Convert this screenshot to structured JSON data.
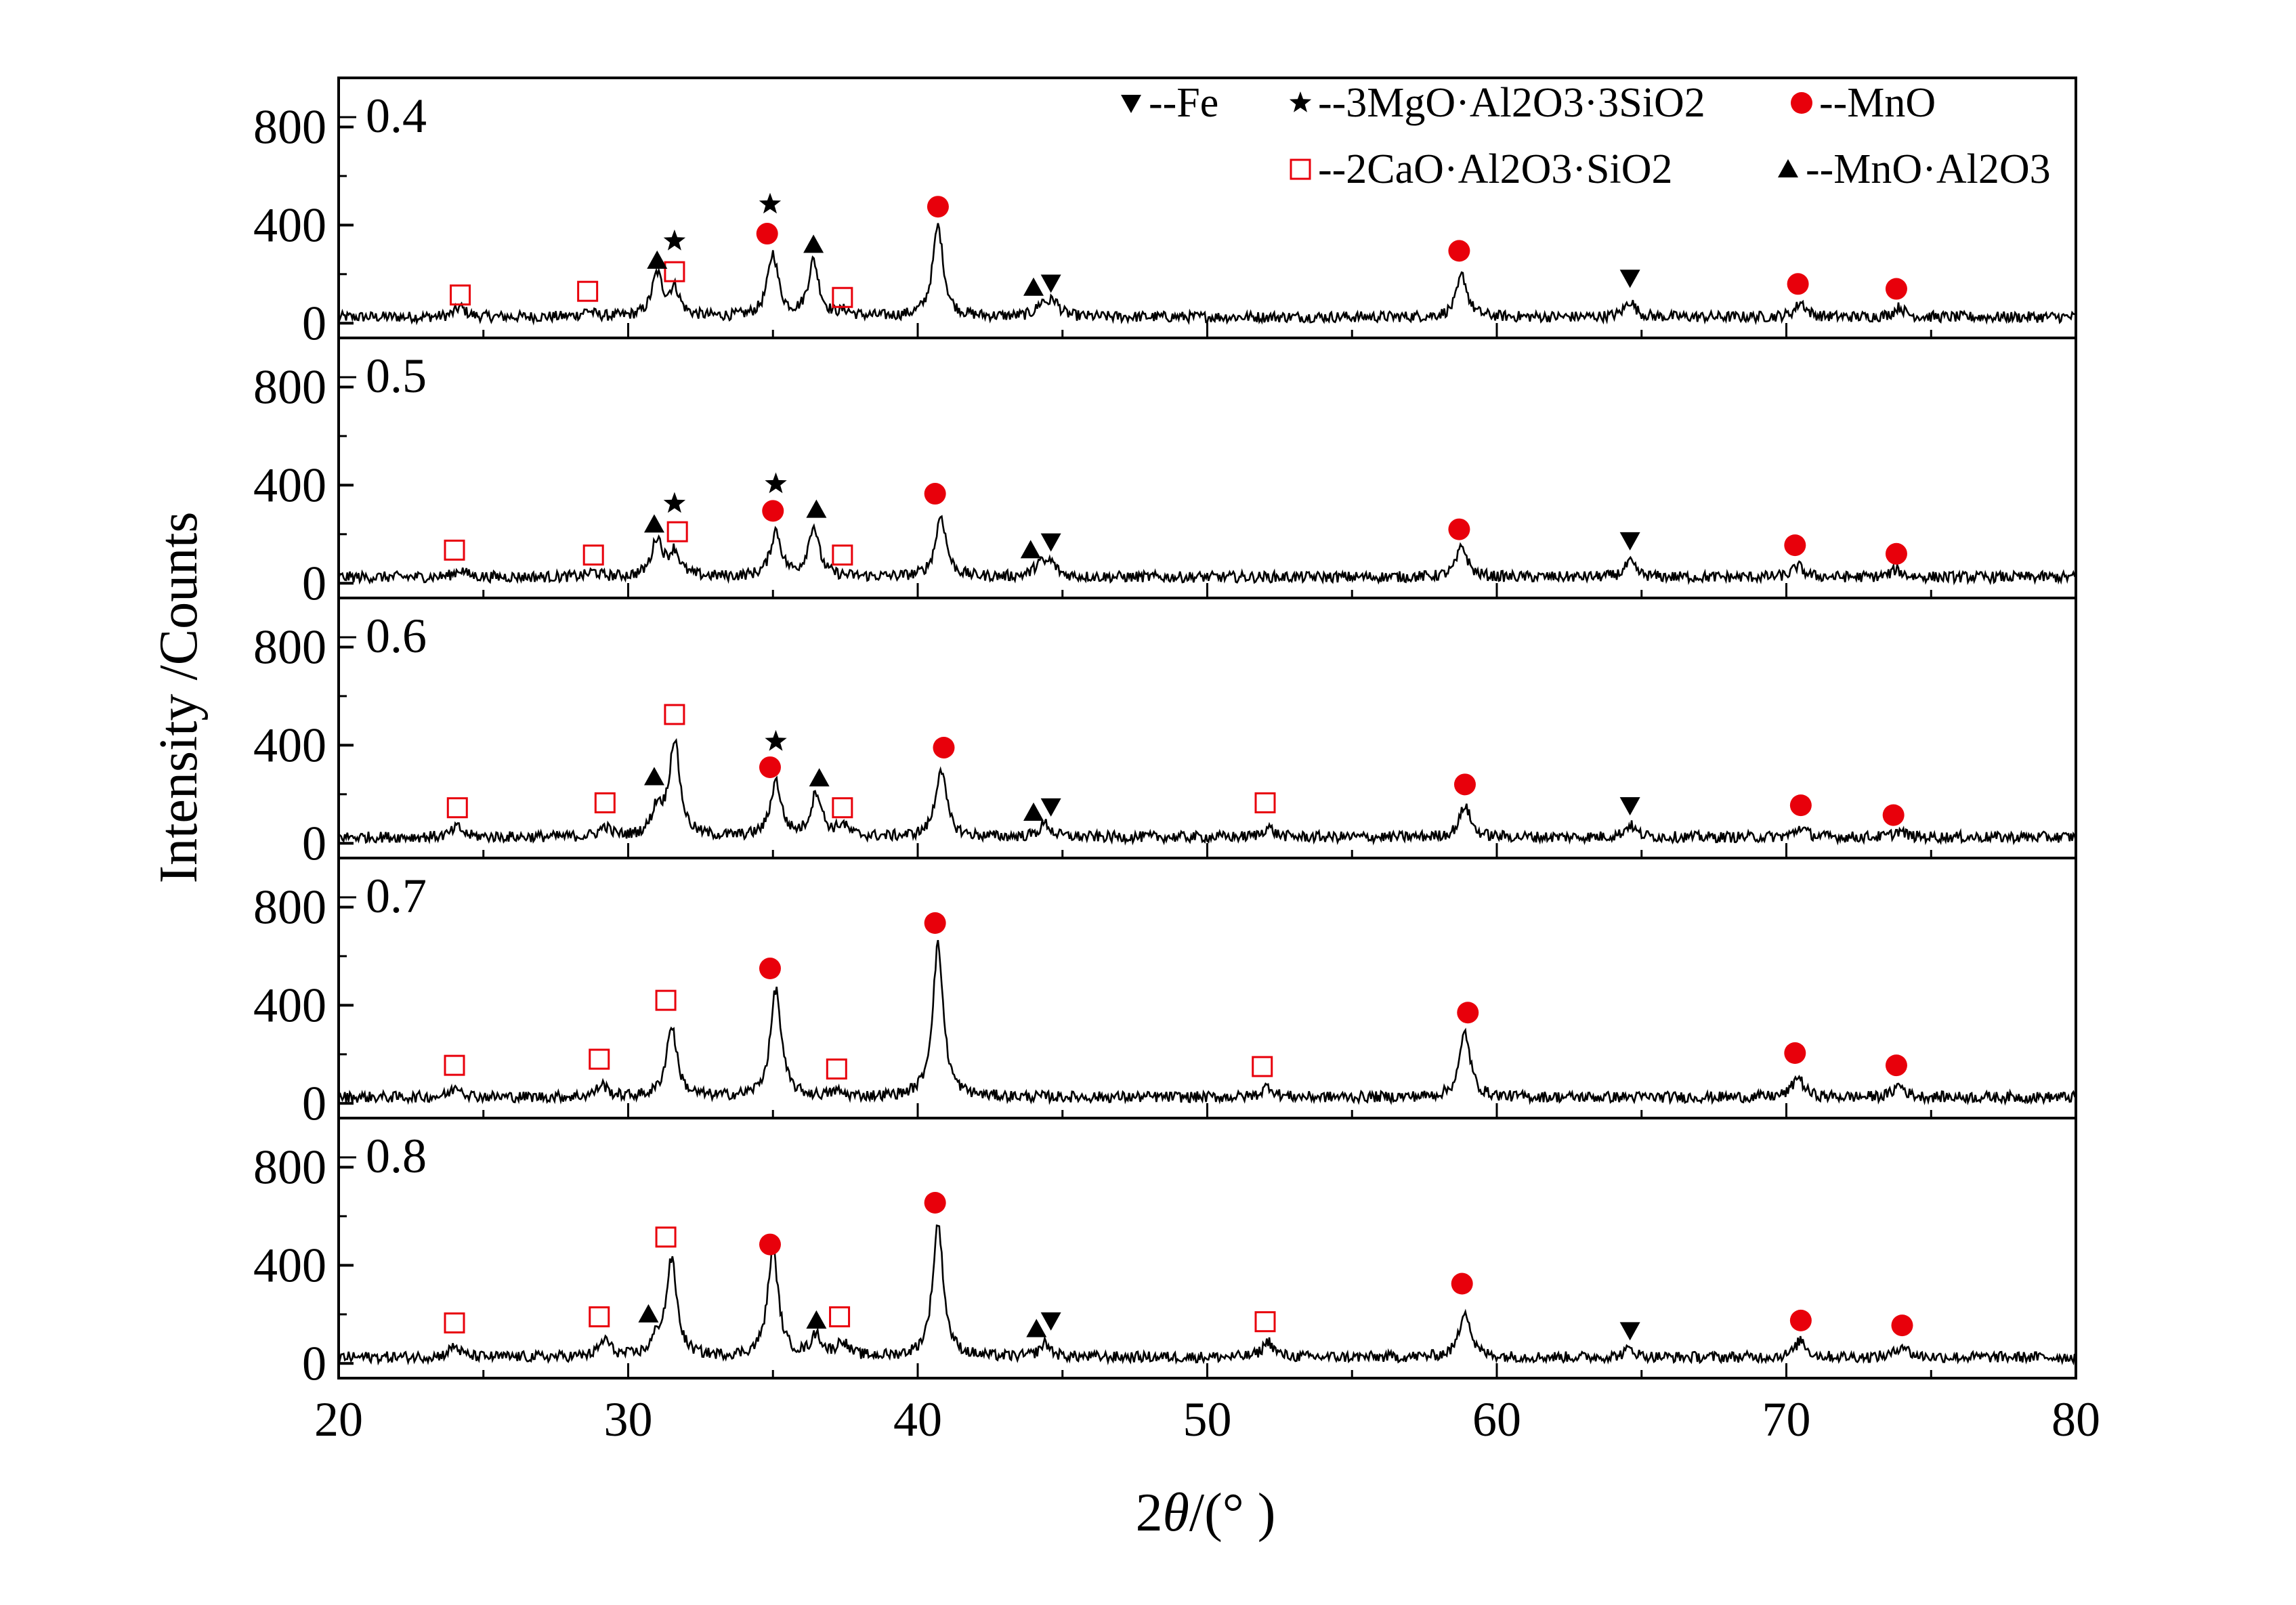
{
  "chart_data": {
    "type": "line",
    "xlabel_prefix": "2",
    "xlabel_symbol": "θ",
    "xlabel_suffix": "/(°  )",
    "ylabel": "Intensity /Counts",
    "xlim": [
      20,
      80
    ],
    "ylim": [
      -60,
      1000
    ],
    "x_ticks": [
      "20",
      "30",
      "40",
      "50",
      "60",
      "70",
      "80"
    ],
    "y_ticks": [
      "0",
      "400",
      "800"
    ],
    "grid": false,
    "legend": {
      "placement": "top-right",
      "entries": [
        {
          "marker": "triangle-down",
          "text": "--Fe"
        },
        {
          "marker": "star",
          "text": "--3MgO·Al2O3·3SiO2"
        },
        {
          "marker": "circle-red",
          "text": "--MnO"
        },
        {
          "marker": "square-open-red",
          "text": "--2CaO·Al2O3·SiO2"
        },
        {
          "marker": "triangle-up",
          "text": "--MnO·Al2O3"
        }
      ]
    },
    "colors": {
      "line": "#000000",
      "mno": "#e8000b",
      "cas": "#e8000b",
      "fe": "#000000"
    },
    "series": [
      {
        "name": "0.4",
        "baseline": 25,
        "peaks": [
          [
            24.2,
            40
          ],
          [
            28.6,
            25
          ],
          [
            31.0,
            170
          ],
          [
            31.6,
            110
          ],
          [
            35.0,
            255
          ],
          [
            36.4,
            225
          ],
          [
            37.5,
            20
          ],
          [
            40.7,
            370
          ],
          [
            44.3,
            50
          ],
          [
            44.7,
            60
          ],
          [
            58.8,
            170
          ],
          [
            64.6,
            65
          ],
          [
            70.5,
            60
          ],
          [
            73.9,
            40
          ]
        ],
        "markers": [
          {
            "type": "square-open",
            "x": 24.2,
            "y": 115
          },
          {
            "type": "square-open",
            "x": 28.6,
            "y": 130
          },
          {
            "type": "square-open",
            "x": 31.6,
            "y": 210
          },
          {
            "type": "square-open",
            "x": 37.4,
            "y": 105
          },
          {
            "type": "triangle-up",
            "x": 31.0,
            "y": 255
          },
          {
            "type": "star",
            "x": 31.6,
            "y": 335
          },
          {
            "type": "star",
            "x": 34.9,
            "y": 485
          },
          {
            "type": "circle",
            "x": 34.8,
            "y": 365
          },
          {
            "type": "triangle-up",
            "x": 36.4,
            "y": 320
          },
          {
            "type": "circle",
            "x": 40.7,
            "y": 475
          },
          {
            "type": "triangle-up",
            "x": 44.0,
            "y": 145
          },
          {
            "type": "triangle-down",
            "x": 44.6,
            "y": 165
          },
          {
            "type": "circle",
            "x": 58.7,
            "y": 295
          },
          {
            "type": "triangle-down",
            "x": 64.6,
            "y": 185
          },
          {
            "type": "circle",
            "x": 70.4,
            "y": 160
          },
          {
            "type": "circle",
            "x": 73.8,
            "y": 140
          }
        ]
      },
      {
        "name": "0.5",
        "baseline": 25,
        "peaks": [
          [
            24.2,
            30
          ],
          [
            28.8,
            20
          ],
          [
            31.0,
            155
          ],
          [
            31.6,
            100
          ],
          [
            35.1,
            185
          ],
          [
            36.4,
            205
          ],
          [
            40.8,
            250
          ],
          [
            44.2,
            50
          ],
          [
            44.6,
            55
          ],
          [
            58.8,
            125
          ],
          [
            64.6,
            60
          ],
          [
            70.4,
            45
          ],
          [
            73.8,
            30
          ]
        ],
        "markers": [
          {
            "type": "square-open",
            "x": 24.0,
            "y": 135
          },
          {
            "type": "square-open",
            "x": 28.8,
            "y": 115
          },
          {
            "type": "square-open",
            "x": 31.7,
            "y": 210
          },
          {
            "type": "square-open",
            "x": 37.4,
            "y": 115
          },
          {
            "type": "triangle-up",
            "x": 30.9,
            "y": 240
          },
          {
            "type": "star",
            "x": 31.6,
            "y": 325
          },
          {
            "type": "star",
            "x": 35.1,
            "y": 405
          },
          {
            "type": "circle",
            "x": 35.0,
            "y": 295
          },
          {
            "type": "triangle-up",
            "x": 36.5,
            "y": 300
          },
          {
            "type": "circle",
            "x": 40.6,
            "y": 365
          },
          {
            "type": "triangle-up",
            "x": 43.9,
            "y": 135
          },
          {
            "type": "triangle-down",
            "x": 44.6,
            "y": 170
          },
          {
            "type": "circle",
            "x": 58.7,
            "y": 220
          },
          {
            "type": "triangle-down",
            "x": 64.6,
            "y": 175
          },
          {
            "type": "circle",
            "x": 70.3,
            "y": 155
          },
          {
            "type": "circle",
            "x": 73.8,
            "y": 120
          }
        ]
      },
      {
        "name": "0.6",
        "baseline": 25,
        "peaks": [
          [
            24.1,
            40
          ],
          [
            29.2,
            40
          ],
          [
            31.0,
            110
          ],
          [
            31.6,
            390
          ],
          [
            35.1,
            225
          ],
          [
            36.5,
            180
          ],
          [
            37.4,
            45
          ],
          [
            40.8,
            280
          ],
          [
            44.4,
            55
          ],
          [
            52.1,
            40
          ],
          [
            58.9,
            130
          ],
          [
            64.6,
            50
          ],
          [
            70.5,
            40
          ],
          [
            73.9,
            25
          ]
        ],
        "markers": [
          {
            "type": "square-open",
            "x": 24.1,
            "y": 145
          },
          {
            "type": "square-open",
            "x": 29.2,
            "y": 165
          },
          {
            "type": "square-open",
            "x": 31.6,
            "y": 525
          },
          {
            "type": "square-open",
            "x": 37.4,
            "y": 145
          },
          {
            "type": "square-open",
            "x": 52.0,
            "y": 165
          },
          {
            "type": "triangle-up",
            "x": 30.9,
            "y": 270
          },
          {
            "type": "star",
            "x": 35.1,
            "y": 415
          },
          {
            "type": "circle",
            "x": 34.9,
            "y": 310
          },
          {
            "type": "triangle-up",
            "x": 36.6,
            "y": 265
          },
          {
            "type": "circle",
            "x": 40.9,
            "y": 390
          },
          {
            "type": "triangle-up",
            "x": 44.0,
            "y": 125
          },
          {
            "type": "triangle-down",
            "x": 44.6,
            "y": 150
          },
          {
            "type": "circle",
            "x": 58.9,
            "y": 240
          },
          {
            "type": "triangle-down",
            "x": 64.6,
            "y": 155
          },
          {
            "type": "circle",
            "x": 70.5,
            "y": 155
          },
          {
            "type": "circle",
            "x": 73.7,
            "y": 115
          }
        ]
      },
      {
        "name": "0.7",
        "baseline": 25,
        "peaks": [
          [
            24.1,
            45
          ],
          [
            29.1,
            50
          ],
          [
            31.5,
            290
          ],
          [
            35.1,
            440
          ],
          [
            37.2,
            20
          ],
          [
            40.7,
            620
          ],
          [
            52.1,
            45
          ],
          [
            58.9,
            265
          ],
          [
            70.4,
            85
          ],
          [
            73.9,
            50
          ]
        ],
        "markers": [
          {
            "type": "square-open",
            "x": 24.0,
            "y": 155
          },
          {
            "type": "square-open",
            "x": 29.0,
            "y": 180
          },
          {
            "type": "square-open",
            "x": 31.3,
            "y": 420
          },
          {
            "type": "square-open",
            "x": 37.2,
            "y": 140
          },
          {
            "type": "square-open",
            "x": 51.9,
            "y": 150
          },
          {
            "type": "circle",
            "x": 34.9,
            "y": 550
          },
          {
            "type": "circle",
            "x": 40.6,
            "y": 735
          },
          {
            "type": "circle",
            "x": 59.0,
            "y": 370
          },
          {
            "type": "circle",
            "x": 70.3,
            "y": 205
          },
          {
            "type": "circle",
            "x": 73.8,
            "y": 155
          }
        ]
      },
      {
        "name": "0.8",
        "baseline": 25,
        "peaks": [
          [
            24.0,
            45
          ],
          [
            29.2,
            70
          ],
          [
            31.0,
            60
          ],
          [
            31.5,
            390
          ],
          [
            35.0,
            440
          ],
          [
            36.5,
            85
          ],
          [
            37.4,
            60
          ],
          [
            40.7,
            545
          ],
          [
            44.4,
            55
          ],
          [
            52.1,
            65
          ],
          [
            58.9,
            195
          ],
          [
            64.6,
            35
          ],
          [
            70.5,
            70
          ],
          [
            74.0,
            50
          ]
        ],
        "markers": [
          {
            "type": "square-open",
            "x": 24.0,
            "y": 165
          },
          {
            "type": "square-open",
            "x": 29.0,
            "y": 190
          },
          {
            "type": "square-open",
            "x": 31.3,
            "y": 515
          },
          {
            "type": "square-open",
            "x": 37.3,
            "y": 190
          },
          {
            "type": "square-open",
            "x": 52.0,
            "y": 170
          },
          {
            "type": "triangle-up",
            "x": 30.7,
            "y": 200
          },
          {
            "type": "circle",
            "x": 34.9,
            "y": 485
          },
          {
            "type": "triangle-up",
            "x": 36.5,
            "y": 175
          },
          {
            "type": "circle",
            "x": 40.6,
            "y": 655
          },
          {
            "type": "triangle-up",
            "x": 44.1,
            "y": 140
          },
          {
            "type": "triangle-down",
            "x": 44.6,
            "y": 175
          },
          {
            "type": "circle",
            "x": 58.8,
            "y": 325
          },
          {
            "type": "triangle-down",
            "x": 64.6,
            "y": 135
          },
          {
            "type": "circle",
            "x": 70.5,
            "y": 175
          },
          {
            "type": "circle",
            "x": 74.0,
            "y": 155
          }
        ]
      }
    ]
  }
}
